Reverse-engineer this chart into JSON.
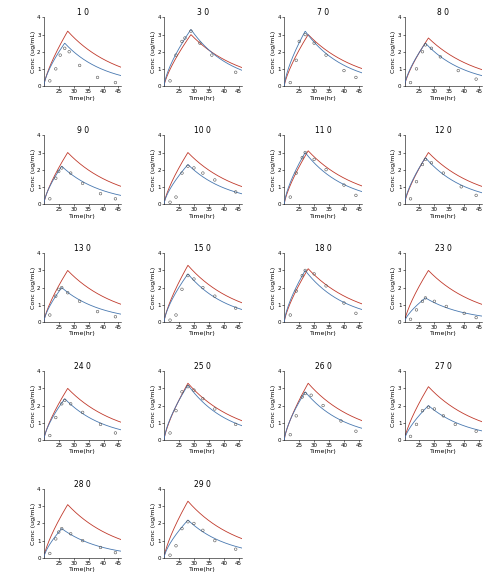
{
  "subjects": [
    {
      "id": "1 0",
      "tpeak_i": 27,
      "tpeak_p": 28,
      "ipeak": 2.5,
      "ppeak": 3.2,
      "obs_times": [
        22,
        24,
        25.5,
        27,
        28.5,
        32,
        38,
        44
      ],
      "obs_vals": [
        0.3,
        1.0,
        1.8,
        2.2,
        2.0,
        1.2,
        0.5,
        0.2
      ]
    },
    {
      "id": "3 0",
      "tpeak_i": 29,
      "tpeak_p": 29,
      "ipeak": 3.3,
      "ppeak": 3.0,
      "obs_times": [
        22,
        24,
        26,
        27,
        29,
        32,
        36,
        44
      ],
      "obs_vals": [
        0.3,
        1.8,
        2.6,
        2.8,
        3.2,
        2.5,
        1.8,
        0.8
      ]
    },
    {
      "id": "7 0",
      "tpeak_i": 27,
      "tpeak_p": 28,
      "ipeak": 3.2,
      "ppeak": 3.0,
      "obs_times": [
        22,
        24,
        25,
        27,
        30,
        34,
        40,
        44
      ],
      "obs_vals": [
        0.2,
        1.5,
        2.6,
        3.0,
        2.5,
        1.8,
        0.9,
        0.5
      ]
    },
    {
      "id": "8 0",
      "tpeak_i": 27,
      "tpeak_p": 28,
      "ipeak": 2.5,
      "ppeak": 2.8,
      "obs_times": [
        22,
        24,
        26,
        27,
        29,
        32,
        38,
        44
      ],
      "obs_vals": [
        0.2,
        1.0,
        2.0,
        2.4,
        2.2,
        1.7,
        0.9,
        0.4
      ]
    },
    {
      "id": "9 0",
      "tpeak_i": 26,
      "tpeak_p": 28,
      "ipeak": 2.2,
      "ppeak": 3.0,
      "obs_times": [
        22,
        24,
        25,
        26,
        29,
        33,
        39,
        44
      ],
      "obs_vals": [
        0.3,
        1.5,
        1.9,
        2.1,
        1.8,
        1.2,
        0.6,
        0.3
      ]
    },
    {
      "id": "10 0",
      "tpeak_i": 28,
      "tpeak_p": 28,
      "ipeak": 2.3,
      "ppeak": 3.0,
      "obs_times": [
        22,
        24,
        26,
        28,
        30,
        33,
        37,
        44
      ],
      "obs_vals": [
        0.1,
        0.4,
        1.8,
        2.2,
        2.1,
        1.8,
        1.4,
        0.7
      ]
    },
    {
      "id": "11 0",
      "tpeak_i": 27,
      "tpeak_p": 28,
      "ipeak": 3.0,
      "ppeak": 3.1,
      "obs_times": [
        22,
        24,
        26,
        27,
        30,
        34,
        40,
        44
      ],
      "obs_vals": [
        0.4,
        1.8,
        2.7,
        3.0,
        2.6,
        2.0,
        1.1,
        0.5
      ]
    },
    {
      "id": "12 0",
      "tpeak_i": 27,
      "tpeak_p": 28,
      "ipeak": 2.7,
      "ppeak": 3.0,
      "obs_times": [
        22,
        24,
        26,
        27,
        29,
        33,
        39,
        44
      ],
      "obs_vals": [
        0.3,
        1.3,
        2.3,
        2.6,
        2.4,
        1.8,
        1.0,
        0.5
      ]
    },
    {
      "id": "13 0",
      "tpeak_i": 26,
      "tpeak_p": 28,
      "ipeak": 2.0,
      "ppeak": 3.0,
      "obs_times": [
        22,
        24,
        25,
        26,
        28,
        32,
        38,
        44
      ],
      "obs_vals": [
        0.4,
        1.5,
        1.9,
        2.0,
        1.7,
        1.2,
        0.6,
        0.3
      ]
    },
    {
      "id": "15 0",
      "tpeak_i": 28,
      "tpeak_p": 28,
      "ipeak": 2.8,
      "ppeak": 3.3,
      "obs_times": [
        22,
        24,
        26,
        28,
        30,
        33,
        37,
        44
      ],
      "obs_vals": [
        0.1,
        0.4,
        1.9,
        2.7,
        2.5,
        2.0,
        1.5,
        0.8
      ]
    },
    {
      "id": "18 0",
      "tpeak_i": 27,
      "tpeak_p": 28,
      "ipeak": 3.0,
      "ppeak": 3.1,
      "obs_times": [
        22,
        24,
        26,
        27,
        30,
        34,
        40,
        44
      ],
      "obs_vals": [
        0.4,
        1.8,
        2.7,
        3.0,
        2.8,
        2.1,
        1.1,
        0.5
      ]
    },
    {
      "id": "23 0",
      "tpeak_i": 27,
      "tpeak_p": 28,
      "ipeak": 1.4,
      "ppeak": 3.0,
      "obs_times": [
        22,
        24,
        26,
        27,
        30,
        34,
        40,
        44
      ],
      "obs_vals": [
        0.15,
        0.7,
        1.2,
        1.4,
        1.2,
        0.9,
        0.5,
        0.25
      ]
    },
    {
      "id": "24 0",
      "tpeak_i": 27,
      "tpeak_p": 28,
      "ipeak": 2.4,
      "ppeak": 3.0,
      "obs_times": [
        22,
        24,
        26,
        27,
        29,
        33,
        39,
        44
      ],
      "obs_vals": [
        0.25,
        1.3,
        2.1,
        2.3,
        2.1,
        1.6,
        0.9,
        0.4
      ]
    },
    {
      "id": "25 0",
      "tpeak_i": 28,
      "tpeak_p": 28,
      "ipeak": 3.2,
      "ppeak": 3.3,
      "obs_times": [
        22,
        24,
        26,
        28,
        30,
        33,
        37,
        44
      ],
      "obs_vals": [
        0.4,
        1.7,
        2.8,
        3.1,
        2.9,
        2.4,
        1.8,
        0.9
      ]
    },
    {
      "id": "26 0",
      "tpeak_i": 27,
      "tpeak_p": 28,
      "ipeak": 2.8,
      "ppeak": 3.3,
      "obs_times": [
        22,
        24,
        26,
        27,
        29,
        33,
        39,
        44
      ],
      "obs_vals": [
        0.3,
        1.4,
        2.5,
        2.7,
        2.6,
        2.0,
        1.1,
        0.5
      ]
    },
    {
      "id": "27 0",
      "tpeak_i": 28,
      "tpeak_p": 28,
      "ipeak": 2.0,
      "ppeak": 3.1,
      "obs_times": [
        22,
        24,
        26,
        28,
        30,
        33,
        37,
        44
      ],
      "obs_vals": [
        0.2,
        0.9,
        1.7,
        1.9,
        1.8,
        1.4,
        0.9,
        0.5
      ]
    },
    {
      "id": "28 0",
      "tpeak_i": 26,
      "tpeak_p": 28,
      "ipeak": 1.7,
      "ppeak": 3.1,
      "obs_times": [
        22,
        24,
        25,
        26,
        29,
        33,
        39,
        44
      ],
      "obs_vals": [
        0.25,
        1.1,
        1.5,
        1.7,
        1.4,
        1.0,
        0.6,
        0.3
      ]
    },
    {
      "id": "29 0",
      "tpeak_i": 28,
      "tpeak_p": 28,
      "ipeak": 2.2,
      "ppeak": 3.3,
      "obs_times": [
        22,
        24,
        26,
        28,
        30,
        33,
        37,
        44
      ],
      "obs_vals": [
        0.15,
        0.7,
        1.7,
        2.1,
        2.0,
        1.6,
        1.0,
        0.5
      ]
    }
  ],
  "xmin": 20,
  "xmax": 46,
  "ymin": 0,
  "ymax": 4,
  "yticks": [
    0,
    1,
    2,
    3,
    4
  ],
  "xticks": [
    25,
    30,
    35,
    40,
    45
  ],
  "blue_color": "#4878b0",
  "red_color": "#c0392b",
  "obs_color": "#555555",
  "xlabel": "Time(hr)",
  "ylabel": "Conc (ug/mL)",
  "title_fontsize": 5.5,
  "label_fontsize": 4.5,
  "tick_fontsize": 4.0,
  "ncols": 4,
  "ke_i": 0.075,
  "ke_p": 0.06
}
